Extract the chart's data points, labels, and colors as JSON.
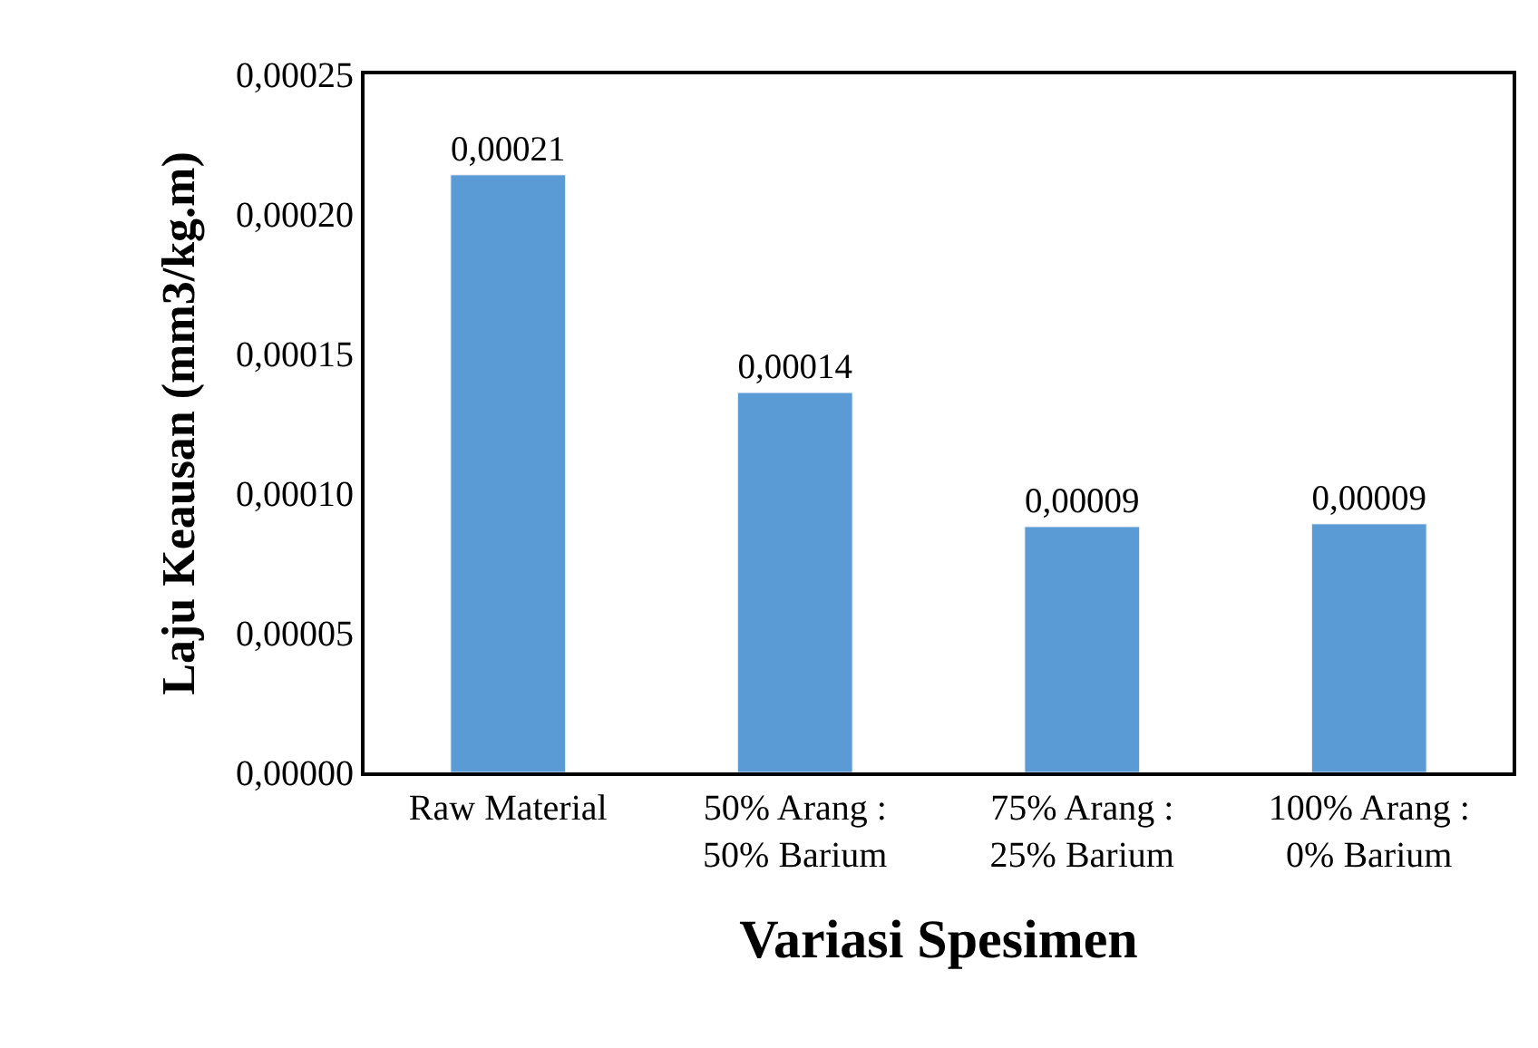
{
  "chart_data": {
    "type": "bar",
    "xlabel": "Variasi Spesimen",
    "ylabel": "Laju Keausan (mm3/kg.m)",
    "categories": [
      "Raw Material",
      "50% Arang :\n50% Barium",
      "75% Arang :\n25% Barium",
      "100% Arang :\n0% Barium"
    ],
    "values": [
      0.000214,
      0.000136,
      8.8e-05,
      8.9e-05
    ],
    "value_labels": [
      "0,00021",
      "0,00014",
      "0,00009",
      "0,00009"
    ],
    "color": "#5b9bd5",
    "ylim": [
      0,
      0.00025
    ],
    "yticks": [
      {
        "value": 0,
        "label": "0,00000"
      },
      {
        "value": 5e-05,
        "label": "0,00005"
      },
      {
        "value": 0.0001,
        "label": "0,00010"
      },
      {
        "value": 0.00015,
        "label": "0,00015"
      },
      {
        "value": 0.0002,
        "label": "0,00020"
      },
      {
        "value": 0.00025,
        "label": "0,00025"
      }
    ],
    "legend": false
  }
}
